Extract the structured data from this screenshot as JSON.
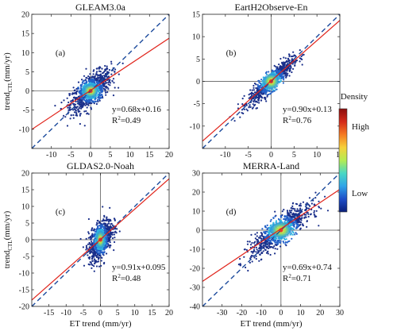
{
  "chart_data": [
    {
      "type": "scatter",
      "panel_label": "(a)",
      "title": "GLEAM3.0a",
      "xlabel": "",
      "ylabel_main": "trend",
      "ylabel_sub": "CTL",
      "ylabel_unit": "(mm/yr)",
      "xlim": [
        -15,
        20
      ],
      "ylim": [
        -15,
        20
      ],
      "xticks": [
        -10,
        -5,
        0,
        5,
        10,
        15,
        20
      ],
      "yticks": [
        -15,
        -10,
        -5,
        0,
        5,
        10,
        15,
        20
      ],
      "xtick_labels": [
        "-10",
        "-5",
        "0",
        "5",
        "10",
        "15",
        "20"
      ],
      "ytick_labels": [
        "",
        "-10",
        "-5",
        "0",
        "5",
        "10",
        "15",
        "20"
      ],
      "fit": {
        "slope": 0.68,
        "intercept": 0.16,
        "equation": "y=0.68x+0.16",
        "r2_label": "R",
        "r2_value": "=0.49"
      },
      "cloud": {
        "center": [
          0,
          0
        ],
        "spread": [
          2.6,
          2.4
        ],
        "corr": 0.7,
        "slope": 0.68,
        "noise": 2.0
      }
    },
    {
      "type": "scatter",
      "panel_label": "(b)",
      "title": "EartH2Observe-En",
      "xlabel": "",
      "ylabel_main": "",
      "ylabel_sub": "",
      "ylabel_unit": "",
      "xlim": [
        -15,
        15
      ],
      "ylim": [
        -15,
        15
      ],
      "xticks": [
        -10,
        -5,
        0,
        5,
        10,
        15
      ],
      "yticks": [
        -15,
        -10,
        -5,
        0,
        5,
        10,
        15
      ],
      "xtick_labels": [
        "-10",
        "-5",
        "0",
        "5",
        "10",
        "15"
      ],
      "ytick_labels": [
        "",
        "-10",
        "-5",
        "0",
        "5",
        "10",
        "15"
      ],
      "fit": {
        "slope": 0.9,
        "intercept": 0.13,
        "equation": "y=0.90x+0.13",
        "r2_label": "R",
        "r2_value": "=0.76"
      },
      "cloud": {
        "center": [
          0,
          0
        ],
        "spread": [
          2.4,
          2.4
        ],
        "corr": 0.87,
        "slope": 0.9,
        "noise": 1.1
      }
    },
    {
      "type": "scatter",
      "panel_label": "(c)",
      "title": "GLDAS2.0-Noah",
      "xlabel": "ET trend (mm/yr)",
      "ylabel_main": "trend",
      "ylabel_sub": "CTL",
      "ylabel_unit": "(mm/yr)",
      "xlim": [
        -20,
        20
      ],
      "ylim": [
        -20,
        20
      ],
      "xticks": [
        -15,
        -10,
        -5,
        0,
        5,
        10,
        15,
        20
      ],
      "yticks": [
        -20,
        -15,
        -10,
        -5,
        0,
        5,
        10,
        15,
        20
      ],
      "xtick_labels": [
        "-15",
        "-10",
        "-5",
        "0",
        "5",
        "10",
        "15",
        "20"
      ],
      "ytick_labels": [
        "-20",
        "-15",
        "-10",
        "-5",
        "0",
        "5",
        "10",
        "15",
        "20"
      ],
      "fit": {
        "slope": 0.91,
        "intercept": 0.095,
        "equation": "y=0.91x+0.095",
        "r2_label": "R",
        "r2_value": "=0.48"
      },
      "cloud": {
        "center": [
          0,
          0
        ],
        "spread": [
          1.7,
          3.6
        ],
        "corr": 0.7,
        "slope": 0.91,
        "noise": 2.6
      }
    },
    {
      "type": "scatter",
      "panel_label": "(d)",
      "title": "MERRA-Land",
      "xlabel": "ET trend (mm/yr)",
      "ylabel_main": "",
      "ylabel_sub": "",
      "ylabel_unit": "",
      "xlim": [
        -40,
        30
      ],
      "ylim": [
        -40,
        30
      ],
      "xticks": [
        -30,
        -20,
        -10,
        0,
        10,
        20,
        30
      ],
      "yticks": [
        -40,
        -30,
        -20,
        -10,
        0,
        10,
        20,
        30
      ],
      "xtick_labels": [
        "-30",
        "-20",
        "-10",
        "0",
        "10",
        "20",
        "30"
      ],
      "ytick_labels": [
        "-40",
        "-30",
        "-20",
        "-10",
        "0",
        "10",
        "20",
        "30"
      ],
      "fit": {
        "slope": 0.69,
        "intercept": 0.74,
        "equation": "y=0.69x+0.74",
        "r2_label": "R",
        "r2_value": "=0.71"
      },
      "cloud": {
        "center": [
          0,
          0
        ],
        "spread": [
          7.5,
          6.0
        ],
        "corr": 0.84,
        "slope": 0.69,
        "noise": 3.6
      }
    }
  ],
  "colorbar": {
    "title": "Density",
    "high_label": "High",
    "low_label": "Low",
    "colors": [
      "#0a1f7a",
      "#1f4ec8",
      "#2fa3e8",
      "#48d8c4",
      "#b4ec52",
      "#f6d13a",
      "#f57a22",
      "#d42a1a",
      "#8a0d0d"
    ]
  },
  "styles": {
    "fit_line_color": "#e0241b",
    "one_to_one_color": "#1b4a9c"
  }
}
